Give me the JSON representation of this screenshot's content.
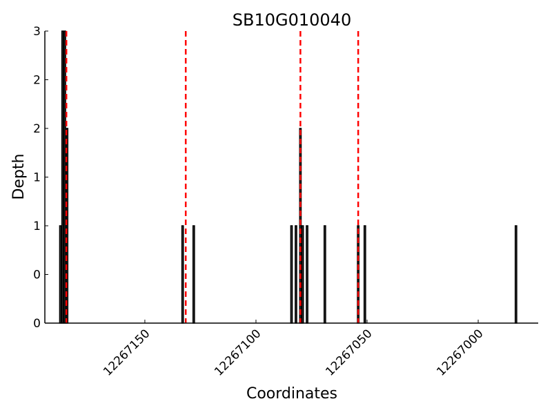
{
  "chart_data": {
    "type": "bar",
    "title": "SB10G010040",
    "xlabel": "Coordinates",
    "ylabel": "Depth",
    "xlim": [
      12267195,
      12266973
    ],
    "x_reversed": true,
    "ylim": [
      0,
      3
    ],
    "x_ticks": [
      12267150,
      12267100,
      12267050,
      12267000
    ],
    "y_ticks": [
      0,
      0.5,
      1,
      1.5,
      2,
      2.5,
      3
    ],
    "y_tick_labels": [
      "0",
      "0",
      "1",
      "1",
      "2",
      "2",
      "3"
    ],
    "bars": [
      {
        "x": 12267188,
        "depth": 1
      },
      {
        "x": 12267187,
        "depth": 3
      },
      {
        "x": 12267186,
        "depth": 3
      },
      {
        "x": 12267185,
        "depth": 2
      },
      {
        "x": 12267133,
        "depth": 1
      },
      {
        "x": 12267128,
        "depth": 1
      },
      {
        "x": 12267084,
        "depth": 1
      },
      {
        "x": 12267082,
        "depth": 1
      },
      {
        "x": 12267080,
        "depth": 2
      },
      {
        "x": 12267079,
        "depth": 1
      },
      {
        "x": 12267077,
        "depth": 1
      },
      {
        "x": 12267069,
        "depth": 1
      },
      {
        "x": 12267054,
        "depth": 1
      },
      {
        "x": 12267051,
        "depth": 1
      },
      {
        "x": 12266983,
        "depth": 1
      }
    ],
    "vlines": [
      12267185.3,
      12267131.6,
      12267080,
      12267054
    ],
    "bar_color": "#444444",
    "vline_color": "#ff0000",
    "grid": false
  }
}
